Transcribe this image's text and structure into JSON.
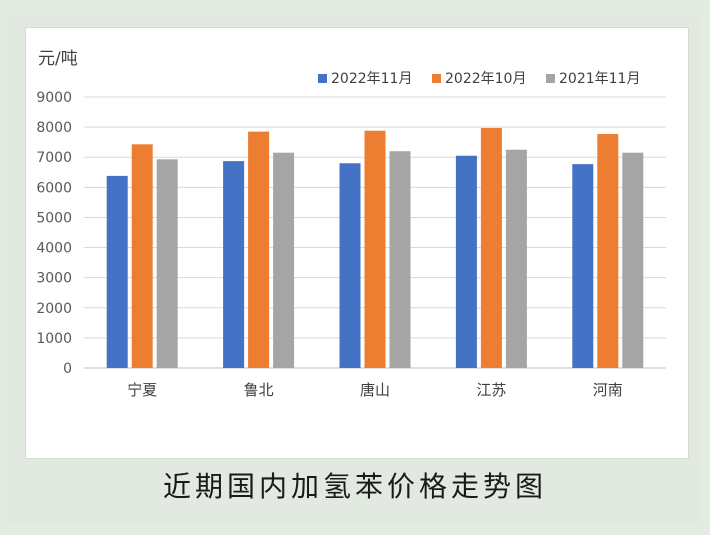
{
  "caption": "近期国内加氢苯价格走势图",
  "chart_data": {
    "type": "bar",
    "title": "",
    "ylabel": "元/吨",
    "xlabel": "",
    "ylim": [
      0,
      9000
    ],
    "yticks": [
      0,
      1000,
      2000,
      3000,
      4000,
      5000,
      6000,
      7000,
      8000,
      9000
    ],
    "grid": true,
    "legend_position": "top-right",
    "categories": [
      "宁夏",
      "鲁北",
      "唐山",
      "江苏",
      "河南"
    ],
    "series": [
      {
        "name": "2022年11月",
        "color": "#4472c4",
        "values": [
          6380,
          6870,
          6800,
          7050,
          6770
        ]
      },
      {
        "name": "2022年10月",
        "color": "#ed7d31",
        "values": [
          7430,
          7850,
          7880,
          7970,
          7770
        ]
      },
      {
        "name": "2021年11月",
        "color": "#a5a5a5",
        "values": [
          6930,
          7150,
          7200,
          7250,
          7150
        ]
      }
    ]
  }
}
